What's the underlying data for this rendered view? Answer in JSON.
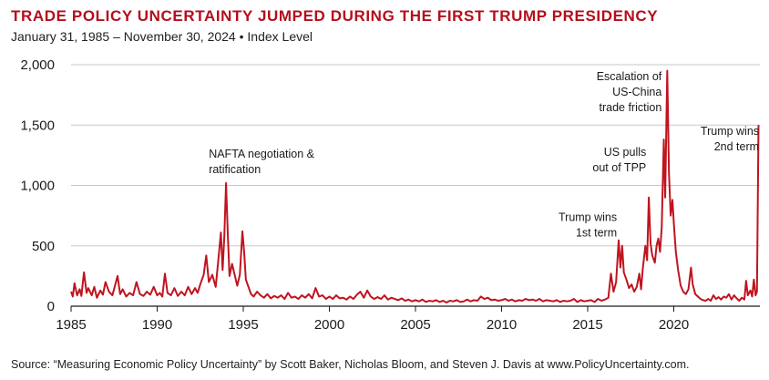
{
  "header": {
    "title": "TRADE POLICY UNCERTAINTY JUMPED DURING THE FIRST TRUMP PRESIDENCY",
    "subtitle": "January 31, 1985 – November 30, 2024 • Index Level"
  },
  "footer": {
    "source": "Source: “Measuring Economic Policy Uncertainty” by Scott Baker, Nicholas Bloom, and Steven J. Davis at www.PolicyUncertainty.com."
  },
  "colors": {
    "accent": "#b30f1c",
    "line": "#c0141f",
    "grid": "#c8c8c8",
    "axis": "#1a1a1a"
  },
  "chart_data": {
    "type": "line",
    "title": "TRADE POLICY UNCERTAINTY JUMPED DURING THE FIRST TRUMP PRESIDENCY",
    "subtitle": "January 31, 1985 – November 30, 2024 • Index Level",
    "xlabel": "",
    "ylabel": "",
    "xlim": [
      1985,
      2025
    ],
    "ylim": [
      0,
      2000
    ],
    "x_ticks": [
      1985,
      1990,
      1995,
      2000,
      2005,
      2010,
      2015,
      2020
    ],
    "y_ticks": [
      0,
      500,
      1000,
      1500,
      2000
    ],
    "y_tick_labels": [
      "0",
      "500",
      "1,000",
      "1,500",
      "2,000"
    ],
    "grid": "horizontal",
    "legend": "none",
    "series": [
      {
        "name": "",
        "points": [
          [
            1985.0,
            120
          ],
          [
            1985.1,
            80
          ],
          [
            1985.2,
            190
          ],
          [
            1985.35,
            90
          ],
          [
            1985.5,
            140
          ],
          [
            1985.6,
            85
          ],
          [
            1985.75,
            280
          ],
          [
            1985.9,
            110
          ],
          [
            1986.0,
            150
          ],
          [
            1986.2,
            90
          ],
          [
            1986.35,
            160
          ],
          [
            1986.5,
            70
          ],
          [
            1986.7,
            130
          ],
          [
            1986.85,
            95
          ],
          [
            1987.0,
            200
          ],
          [
            1987.2,
            120
          ],
          [
            1987.4,
            90
          ],
          [
            1987.55,
            170
          ],
          [
            1987.7,
            250
          ],
          [
            1987.85,
            100
          ],
          [
            1988.0,
            140
          ],
          [
            1988.2,
            80
          ],
          [
            1988.4,
            110
          ],
          [
            1988.6,
            90
          ],
          [
            1988.8,
            200
          ],
          [
            1989.0,
            100
          ],
          [
            1989.2,
            85
          ],
          [
            1989.4,
            120
          ],
          [
            1989.6,
            95
          ],
          [
            1989.8,
            160
          ],
          [
            1990.0,
            90
          ],
          [
            1990.15,
            110
          ],
          [
            1990.3,
            80
          ],
          [
            1990.45,
            270
          ],
          [
            1990.6,
            110
          ],
          [
            1990.8,
            90
          ],
          [
            1991.0,
            150
          ],
          [
            1991.2,
            85
          ],
          [
            1991.4,
            120
          ],
          [
            1991.6,
            90
          ],
          [
            1991.8,
            160
          ],
          [
            1992.0,
            100
          ],
          [
            1992.2,
            150
          ],
          [
            1992.35,
            110
          ],
          [
            1992.5,
            180
          ],
          [
            1992.7,
            260
          ],
          [
            1992.85,
            420
          ],
          [
            1993.0,
            200
          ],
          [
            1993.2,
            260
          ],
          [
            1993.4,
            160
          ],
          [
            1993.55,
            380
          ],
          [
            1993.7,
            610
          ],
          [
            1993.8,
            300
          ],
          [
            1993.9,
            580
          ],
          [
            1994.0,
            1020
          ],
          [
            1994.1,
            600
          ],
          [
            1994.2,
            250
          ],
          [
            1994.35,
            350
          ],
          [
            1994.5,
            260
          ],
          [
            1994.65,
            170
          ],
          [
            1994.8,
            260
          ],
          [
            1994.95,
            620
          ],
          [
            1995.05,
            450
          ],
          [
            1995.15,
            220
          ],
          [
            1995.3,
            160
          ],
          [
            1995.45,
            100
          ],
          [
            1995.6,
            80
          ],
          [
            1995.8,
            120
          ],
          [
            1996.0,
            90
          ],
          [
            1996.2,
            70
          ],
          [
            1996.4,
            100
          ],
          [
            1996.6,
            65
          ],
          [
            1996.8,
            85
          ],
          [
            1997.0,
            70
          ],
          [
            1997.2,
            90
          ],
          [
            1997.4,
            60
          ],
          [
            1997.6,
            110
          ],
          [
            1997.8,
            70
          ],
          [
            1998.0,
            80
          ],
          [
            1998.2,
            60
          ],
          [
            1998.4,
            90
          ],
          [
            1998.6,
            70
          ],
          [
            1998.8,
            100
          ],
          [
            1999.0,
            65
          ],
          [
            1999.2,
            150
          ],
          [
            1999.4,
            80
          ],
          [
            1999.6,
            90
          ],
          [
            1999.8,
            60
          ],
          [
            2000.0,
            80
          ],
          [
            2000.2,
            60
          ],
          [
            2000.4,
            90
          ],
          [
            2000.6,
            65
          ],
          [
            2000.8,
            70
          ],
          [
            2001.0,
            55
          ],
          [
            2001.2,
            80
          ],
          [
            2001.4,
            60
          ],
          [
            2001.6,
            95
          ],
          [
            2001.8,
            120
          ],
          [
            2002.0,
            70
          ],
          [
            2002.2,
            130
          ],
          [
            2002.4,
            80
          ],
          [
            2002.6,
            60
          ],
          [
            2002.8,
            75
          ],
          [
            2003.0,
            60
          ],
          [
            2003.2,
            90
          ],
          [
            2003.4,
            55
          ],
          [
            2003.6,
            70
          ],
          [
            2003.8,
            60
          ],
          [
            2004.0,
            50
          ],
          [
            2004.2,
            65
          ],
          [
            2004.4,
            45
          ],
          [
            2004.6,
            55
          ],
          [
            2004.8,
            40
          ],
          [
            2005.0,
            50
          ],
          [
            2005.2,
            40
          ],
          [
            2005.4,
            55
          ],
          [
            2005.6,
            35
          ],
          [
            2005.8,
            45
          ],
          [
            2006.0,
            40
          ],
          [
            2006.2,
            50
          ],
          [
            2006.4,
            35
          ],
          [
            2006.6,
            45
          ],
          [
            2006.8,
            30
          ],
          [
            2007.0,
            45
          ],
          [
            2007.2,
            40
          ],
          [
            2007.4,
            50
          ],
          [
            2007.6,
            35
          ],
          [
            2007.8,
            40
          ],
          [
            2008.0,
            55
          ],
          [
            2008.2,
            40
          ],
          [
            2008.4,
            50
          ],
          [
            2008.6,
            45
          ],
          [
            2008.8,
            80
          ],
          [
            2009.0,
            60
          ],
          [
            2009.2,
            70
          ],
          [
            2009.4,
            50
          ],
          [
            2009.6,
            55
          ],
          [
            2009.8,
            45
          ],
          [
            2010.0,
            50
          ],
          [
            2010.2,
            60
          ],
          [
            2010.4,
            45
          ],
          [
            2010.6,
            55
          ],
          [
            2010.8,
            40
          ],
          [
            2011.0,
            50
          ],
          [
            2011.2,
            45
          ],
          [
            2011.4,
            60
          ],
          [
            2011.6,
            50
          ],
          [
            2011.8,
            55
          ],
          [
            2012.0,
            45
          ],
          [
            2012.2,
            60
          ],
          [
            2012.4,
            40
          ],
          [
            2012.6,
            50
          ],
          [
            2012.8,
            45
          ],
          [
            2013.0,
            40
          ],
          [
            2013.2,
            50
          ],
          [
            2013.4,
            35
          ],
          [
            2013.6,
            45
          ],
          [
            2013.8,
            40
          ],
          [
            2014.0,
            45
          ],
          [
            2014.2,
            60
          ],
          [
            2014.4,
            35
          ],
          [
            2014.6,
            50
          ],
          [
            2014.8,
            40
          ],
          [
            2015.0,
            45
          ],
          [
            2015.2,
            50
          ],
          [
            2015.4,
            35
          ],
          [
            2015.6,
            60
          ],
          [
            2015.8,
            45
          ],
          [
            2016.0,
            55
          ],
          [
            2016.2,
            70
          ],
          [
            2016.35,
            270
          ],
          [
            2016.5,
            120
          ],
          [
            2016.65,
            200
          ],
          [
            2016.8,
            545
          ],
          [
            2016.9,
            320
          ],
          [
            2017.0,
            500
          ],
          [
            2017.1,
            280
          ],
          [
            2017.25,
            220
          ],
          [
            2017.4,
            150
          ],
          [
            2017.55,
            180
          ],
          [
            2017.7,
            120
          ],
          [
            2017.85,
            160
          ],
          [
            2018.0,
            270
          ],
          [
            2018.1,
            140
          ],
          [
            2018.2,
            310
          ],
          [
            2018.35,
            500
          ],
          [
            2018.45,
            380
          ],
          [
            2018.55,
            900
          ],
          [
            2018.65,
            520
          ],
          [
            2018.75,
            420
          ],
          [
            2018.9,
            360
          ],
          [
            2019.0,
            500
          ],
          [
            2019.1,
            560
          ],
          [
            2019.2,
            450
          ],
          [
            2019.3,
            650
          ],
          [
            2019.42,
            1380
          ],
          [
            2019.5,
            900
          ],
          [
            2019.62,
            1950
          ],
          [
            2019.72,
            1100
          ],
          [
            2019.82,
            750
          ],
          [
            2019.92,
            880
          ],
          [
            2020.02,
            650
          ],
          [
            2020.12,
            450
          ],
          [
            2020.25,
            300
          ],
          [
            2020.4,
            170
          ],
          [
            2020.55,
            120
          ],
          [
            2020.7,
            100
          ],
          [
            2020.85,
            140
          ],
          [
            2021.0,
            320
          ],
          [
            2021.1,
            180
          ],
          [
            2021.25,
            100
          ],
          [
            2021.4,
            80
          ],
          [
            2021.55,
            60
          ],
          [
            2021.7,
            50
          ],
          [
            2021.85,
            45
          ],
          [
            2022.0,
            60
          ],
          [
            2022.15,
            45
          ],
          [
            2022.3,
            90
          ],
          [
            2022.45,
            60
          ],
          [
            2022.6,
            75
          ],
          [
            2022.75,
            55
          ],
          [
            2022.9,
            80
          ],
          [
            2023.05,
            70
          ],
          [
            2023.2,
            100
          ],
          [
            2023.35,
            55
          ],
          [
            2023.5,
            90
          ],
          [
            2023.65,
            65
          ],
          [
            2023.8,
            45
          ],
          [
            2023.95,
            70
          ],
          [
            2024.1,
            55
          ],
          [
            2024.2,
            210
          ],
          [
            2024.3,
            90
          ],
          [
            2024.45,
            130
          ],
          [
            2024.55,
            80
          ],
          [
            2024.65,
            220
          ],
          [
            2024.75,
            90
          ],
          [
            2024.83,
            120
          ],
          [
            2024.92,
            1500
          ]
        ]
      }
    ],
    "annotations": [
      {
        "lines": [
          "NAFTA negotiation &",
          "ratification"
        ],
        "x": 1993.0,
        "y": 1230,
        "align": "start"
      },
      {
        "lines": [
          "Trump wins",
          "1st term"
        ],
        "x": 2016.7,
        "y": 705,
        "align": "end"
      },
      {
        "lines": [
          "US pulls",
          "out of TPP"
        ],
        "x": 2018.4,
        "y": 1245,
        "align": "end"
      },
      {
        "lines": [
          "Escalation of",
          "US-China",
          "trade friction"
        ],
        "x": 2019.3,
        "y": 1870,
        "align": "end"
      },
      {
        "lines": [
          "Trump wins",
          "2nd term"
        ],
        "x": 2024.95,
        "y": 1420,
        "align": "end"
      }
    ]
  }
}
